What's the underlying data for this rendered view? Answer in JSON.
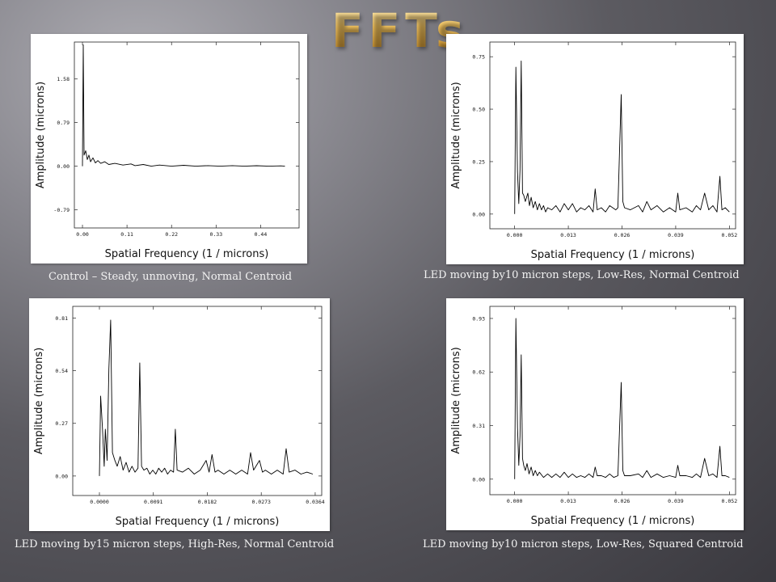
{
  "page": {
    "title": "FFTs"
  },
  "chart_data": [
    {
      "type": "line",
      "caption": "Control – Steady, unmoving, Normal Centroid",
      "xlabel": "Spatial Frequency (1 / microns)",
      "ylabel": "Amplitude (microns)",
      "xticks": [
        "0.00",
        "0.11",
        "0.22",
        "0.33",
        "0.44"
      ],
      "xtick_values": [
        0,
        0.11,
        0.22,
        0.33,
        0.44
      ],
      "yticks": [
        "-0.79",
        "0.00",
        "0.79",
        "1.58"
      ],
      "ytick_values": [
        -0.79,
        0,
        0.79,
        1.58
      ],
      "xlim": [
        -0.02,
        0.535
      ],
      "ylim": [
        -1.12,
        2.25
      ],
      "series": [
        {
          "points": [
            [
              0.0,
              0.0
            ],
            [
              0.002,
              2.2
            ],
            [
              0.004,
              0.2
            ],
            [
              0.008,
              0.28
            ],
            [
              0.012,
              0.12
            ],
            [
              0.016,
              0.2
            ],
            [
              0.02,
              0.08
            ],
            [
              0.026,
              0.15
            ],
            [
              0.032,
              0.06
            ],
            [
              0.038,
              0.1
            ],
            [
              0.045,
              0.05
            ],
            [
              0.055,
              0.08
            ],
            [
              0.065,
              0.03
            ],
            [
              0.08,
              0.05
            ],
            [
              0.1,
              0.02
            ],
            [
              0.12,
              0.04
            ],
            [
              0.13,
              0.01
            ],
            [
              0.15,
              0.03
            ],
            [
              0.17,
              0.0
            ],
            [
              0.19,
              0.02
            ],
            [
              0.22,
              0.0
            ],
            [
              0.25,
              0.015
            ],
            [
              0.28,
              0.0
            ],
            [
              0.31,
              0.01
            ],
            [
              0.34,
              0.0
            ],
            [
              0.37,
              0.01
            ],
            [
              0.4,
              0.0
            ],
            [
              0.43,
              0.008
            ],
            [
              0.46,
              0.0
            ],
            [
              0.49,
              0.005
            ],
            [
              0.5,
              0.0
            ]
          ]
        }
      ]
    },
    {
      "type": "line",
      "caption": "LED moving by10 micron steps, Low-Res, Normal Centroid",
      "xlabel": "Spatial Frequency (1 / microns)",
      "ylabel": "Amplitude (microns)",
      "xticks": [
        "0.000",
        "0.013",
        "0.026",
        "0.039",
        "0.052"
      ],
      "xtick_values": [
        0,
        0.013,
        0.026,
        0.039,
        0.052
      ],
      "yticks": [
        "0.00",
        "0.25",
        "0.50",
        "0.75"
      ],
      "ytick_values": [
        0,
        0.25,
        0.5,
        0.75
      ],
      "xlim": [
        -0.006,
        0.0535
      ],
      "ylim": [
        -0.07,
        0.82
      ],
      "series": [
        {
          "points": [
            [
              0.0,
              0.0
            ],
            [
              0.0003,
              0.7
            ],
            [
              0.0007,
              0.2
            ],
            [
              0.001,
              0.05
            ],
            [
              0.0013,
              0.21
            ],
            [
              0.0016,
              0.73
            ],
            [
              0.0019,
              0.1
            ],
            [
              0.0022,
              0.09
            ],
            [
              0.0026,
              0.06
            ],
            [
              0.0032,
              0.1
            ],
            [
              0.0036,
              0.04
            ],
            [
              0.004,
              0.08
            ],
            [
              0.0045,
              0.03
            ],
            [
              0.005,
              0.06
            ],
            [
              0.0055,
              0.02
            ],
            [
              0.006,
              0.05
            ],
            [
              0.0065,
              0.02
            ],
            [
              0.007,
              0.04
            ],
            [
              0.0075,
              0.01
            ],
            [
              0.008,
              0.03
            ],
            [
              0.009,
              0.02
            ],
            [
              0.01,
              0.04
            ],
            [
              0.011,
              0.01
            ],
            [
              0.012,
              0.05
            ],
            [
              0.013,
              0.02
            ],
            [
              0.014,
              0.05
            ],
            [
              0.015,
              0.01
            ],
            [
              0.016,
              0.03
            ],
            [
              0.017,
              0.02
            ],
            [
              0.018,
              0.04
            ],
            [
              0.019,
              0.01
            ],
            [
              0.0195,
              0.12
            ],
            [
              0.02,
              0.02
            ],
            [
              0.021,
              0.03
            ],
            [
              0.022,
              0.01
            ],
            [
              0.023,
              0.04
            ],
            [
              0.0245,
              0.02
            ],
            [
              0.025,
              0.03
            ],
            [
              0.0258,
              0.57
            ],
            [
              0.0262,
              0.06
            ],
            [
              0.0266,
              0.03
            ],
            [
              0.028,
              0.02
            ],
            [
              0.03,
              0.04
            ],
            [
              0.031,
              0.01
            ],
            [
              0.032,
              0.06
            ],
            [
              0.033,
              0.02
            ],
            [
              0.0345,
              0.04
            ],
            [
              0.036,
              0.01
            ],
            [
              0.0375,
              0.03
            ],
            [
              0.039,
              0.01
            ],
            [
              0.0395,
              0.1
            ],
            [
              0.04,
              0.02
            ],
            [
              0.0415,
              0.03
            ],
            [
              0.043,
              0.01
            ],
            [
              0.044,
              0.04
            ],
            [
              0.045,
              0.02
            ],
            [
              0.046,
              0.1
            ],
            [
              0.047,
              0.02
            ],
            [
              0.048,
              0.04
            ],
            [
              0.049,
              0.01
            ],
            [
              0.0497,
              0.18
            ],
            [
              0.0502,
              0.02
            ],
            [
              0.051,
              0.03
            ],
            [
              0.052,
              0.01
            ]
          ]
        }
      ]
    },
    {
      "type": "line",
      "caption": "LED moving by15 micron steps, High-Res, Normal Centroid",
      "xlabel": "Spatial Frequency (1 / microns)",
      "ylabel": "Amplitude (microns)",
      "xticks": [
        "0.0000",
        "0.0091",
        "0.0182",
        "0.0273",
        "0.0364"
      ],
      "xtick_values": [
        0,
        0.0091,
        0.0182,
        0.0273,
        0.0364
      ],
      "yticks": [
        "0.00",
        "0.27",
        "0.54",
        "0.81"
      ],
      "ytick_values": [
        0,
        0.27,
        0.54,
        0.81
      ],
      "xlim": [
        -0.0045,
        0.0375
      ],
      "ylim": [
        -0.1,
        0.87
      ],
      "series": [
        {
          "points": [
            [
              0.0,
              0.0
            ],
            [
              0.0002,
              0.41
            ],
            [
              0.0005,
              0.25
            ],
            [
              0.0008,
              0.05
            ],
            [
              0.001,
              0.24
            ],
            [
              0.0013,
              0.08
            ],
            [
              0.0016,
              0.55
            ],
            [
              0.0019,
              0.8
            ],
            [
              0.0022,
              0.12
            ],
            [
              0.0026,
              0.08
            ],
            [
              0.003,
              0.05
            ],
            [
              0.0035,
              0.1
            ],
            [
              0.004,
              0.03
            ],
            [
              0.0045,
              0.07
            ],
            [
              0.005,
              0.02
            ],
            [
              0.0055,
              0.05
            ],
            [
              0.006,
              0.02
            ],
            [
              0.0065,
              0.04
            ],
            [
              0.0068,
              0.58
            ],
            [
              0.0071,
              0.05
            ],
            [
              0.0075,
              0.03
            ],
            [
              0.008,
              0.04
            ],
            [
              0.0085,
              0.01
            ],
            [
              0.009,
              0.03
            ],
            [
              0.0095,
              0.01
            ],
            [
              0.01,
              0.04
            ],
            [
              0.0105,
              0.02
            ],
            [
              0.011,
              0.04
            ],
            [
              0.0115,
              0.01
            ],
            [
              0.012,
              0.03
            ],
            [
              0.0125,
              0.02
            ],
            [
              0.0128,
              0.24
            ],
            [
              0.0131,
              0.03
            ],
            [
              0.014,
              0.02
            ],
            [
              0.015,
              0.04
            ],
            [
              0.016,
              0.01
            ],
            [
              0.017,
              0.03
            ],
            [
              0.018,
              0.08
            ],
            [
              0.0185,
              0.02
            ],
            [
              0.019,
              0.11
            ],
            [
              0.0195,
              0.02
            ],
            [
              0.02,
              0.03
            ],
            [
              0.021,
              0.01
            ],
            [
              0.022,
              0.03
            ],
            [
              0.023,
              0.01
            ],
            [
              0.024,
              0.03
            ],
            [
              0.025,
              0.01
            ],
            [
              0.0255,
              0.12
            ],
            [
              0.026,
              0.03
            ],
            [
              0.027,
              0.08
            ],
            [
              0.0275,
              0.02
            ],
            [
              0.028,
              0.03
            ],
            [
              0.029,
              0.01
            ],
            [
              0.03,
              0.03
            ],
            [
              0.031,
              0.01
            ],
            [
              0.0315,
              0.14
            ],
            [
              0.032,
              0.02
            ],
            [
              0.033,
              0.03
            ],
            [
              0.034,
              0.01
            ],
            [
              0.035,
              0.02
            ],
            [
              0.036,
              0.01
            ]
          ]
        }
      ]
    },
    {
      "type": "line",
      "caption": "LED moving by10 micron steps, Low-Res, Squared Centroid",
      "xlabel": "Spatial Frequency (1 / microns)",
      "ylabel": "Amplitude (microns)",
      "xticks": [
        "0.000",
        "0.013",
        "0.026",
        "0.039",
        "0.052"
      ],
      "xtick_values": [
        0,
        0.013,
        0.026,
        0.039,
        0.052
      ],
      "yticks": [
        "0.00",
        "0.31",
        "0.62",
        "0.93"
      ],
      "ytick_values": [
        0,
        0.31,
        0.62,
        0.93
      ],
      "xlim": [
        -0.006,
        0.0535
      ],
      "ylim": [
        -0.09,
        1.0
      ],
      "series": [
        {
          "points": [
            [
              0.0,
              0.0
            ],
            [
              0.0003,
              0.93
            ],
            [
              0.0007,
              0.3
            ],
            [
              0.001,
              0.08
            ],
            [
              0.0013,
              0.25
            ],
            [
              0.0016,
              0.72
            ],
            [
              0.0019,
              0.12
            ],
            [
              0.0022,
              0.08
            ],
            [
              0.0026,
              0.05
            ],
            [
              0.003,
              0.09
            ],
            [
              0.0035,
              0.03
            ],
            [
              0.004,
              0.07
            ],
            [
              0.0045,
              0.02
            ],
            [
              0.005,
              0.05
            ],
            [
              0.0055,
              0.02
            ],
            [
              0.006,
              0.04
            ],
            [
              0.007,
              0.01
            ],
            [
              0.008,
              0.03
            ],
            [
              0.009,
              0.01
            ],
            [
              0.01,
              0.03
            ],
            [
              0.011,
              0.01
            ],
            [
              0.012,
              0.04
            ],
            [
              0.013,
              0.01
            ],
            [
              0.014,
              0.03
            ],
            [
              0.015,
              0.01
            ],
            [
              0.016,
              0.02
            ],
            [
              0.017,
              0.01
            ],
            [
              0.018,
              0.03
            ],
            [
              0.019,
              0.01
            ],
            [
              0.0195,
              0.07
            ],
            [
              0.02,
              0.02
            ],
            [
              0.021,
              0.02
            ],
            [
              0.022,
              0.01
            ],
            [
              0.023,
              0.03
            ],
            [
              0.024,
              0.01
            ],
            [
              0.025,
              0.02
            ],
            [
              0.0258,
              0.56
            ],
            [
              0.0262,
              0.05
            ],
            [
              0.0266,
              0.02
            ],
            [
              0.028,
              0.02
            ],
            [
              0.03,
              0.03
            ],
            [
              0.031,
              0.01
            ],
            [
              0.032,
              0.05
            ],
            [
              0.033,
              0.01
            ],
            [
              0.0345,
              0.03
            ],
            [
              0.036,
              0.01
            ],
            [
              0.0375,
              0.02
            ],
            [
              0.039,
              0.01
            ],
            [
              0.0395,
              0.08
            ],
            [
              0.04,
              0.02
            ],
            [
              0.0415,
              0.02
            ],
            [
              0.043,
              0.01
            ],
            [
              0.044,
              0.03
            ],
            [
              0.045,
              0.01
            ],
            [
              0.046,
              0.12
            ],
            [
              0.047,
              0.02
            ],
            [
              0.048,
              0.03
            ],
            [
              0.049,
              0.01
            ],
            [
              0.0497,
              0.19
            ],
            [
              0.0502,
              0.02
            ],
            [
              0.051,
              0.02
            ],
            [
              0.052,
              0.01
            ]
          ]
        }
      ]
    }
  ]
}
